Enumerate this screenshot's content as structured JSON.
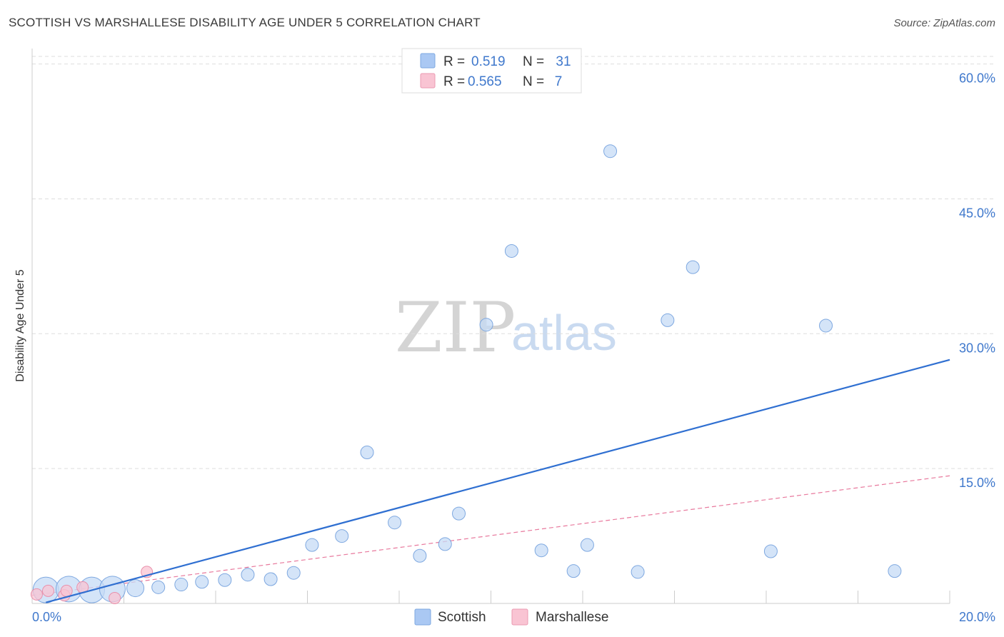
{
  "title": "SCOTTISH VS MARSHALLESE DISABILITY AGE UNDER 5 CORRELATION CHART",
  "source": "Source: ZipAtlas.com",
  "watermark": {
    "zip": "ZIP",
    "atlas": "atlas"
  },
  "legend": {
    "r_label": "R =",
    "n_label": "N =",
    "rows": [
      {
        "name": "Scottish",
        "r": "0.519",
        "n": "31",
        "color": "#aac8f3",
        "stroke": "#7ea8e0"
      },
      {
        "name": "Marshallese",
        "r": "0.565",
        "n": "7",
        "color": "#f9c4d3",
        "stroke": "#eb9ab2"
      }
    ]
  },
  "colors": {
    "scottish_fill": "#c5dbf6",
    "scottish_stroke": "#7ea8e0",
    "scottish_line": "#2f6fd1",
    "marshallese_fill": "#f9c4d3",
    "marshallese_stroke": "#e890ab",
    "marshallese_line": "#e8799d",
    "grid": "#dddddd",
    "axis_text": "#3f78cc"
  },
  "chart_data": {
    "type": "scatter",
    "title": "SCOTTISH VS MARSHALLESE DISABILITY AGE UNDER 5 CORRELATION CHART",
    "xlabel": "",
    "ylabel": "Disability Age Under 5",
    "xlim": [
      0,
      20
    ],
    "ylim": [
      0,
      61
    ],
    "x_tick_labels": [
      "0.0%",
      "20.0%"
    ],
    "y_ticks": [
      15,
      30,
      45,
      60
    ],
    "y_tick_labels": [
      "15.0%",
      "30.0%",
      "45.0%",
      "60.0%"
    ],
    "grid": true,
    "legend_position": "top-center",
    "series": [
      {
        "name": "Scottish",
        "points": [
          {
            "x": 0.3,
            "y": 1.5,
            "size": "large"
          },
          {
            "x": 0.8,
            "y": 1.6,
            "size": "large"
          },
          {
            "x": 1.3,
            "y": 1.5,
            "size": "large"
          },
          {
            "x": 1.75,
            "y": 1.6,
            "size": "large"
          },
          {
            "x": 2.25,
            "y": 1.7,
            "size": "medium"
          },
          {
            "x": 2.75,
            "y": 1.8,
            "size": "small"
          },
          {
            "x": 3.25,
            "y": 2.1,
            "size": "small"
          },
          {
            "x": 3.7,
            "y": 2.4,
            "size": "small"
          },
          {
            "x": 4.2,
            "y": 2.6,
            "size": "small"
          },
          {
            "x": 4.7,
            "y": 3.2,
            "size": "small"
          },
          {
            "x": 5.2,
            "y": 2.7,
            "size": "small"
          },
          {
            "x": 5.7,
            "y": 3.4,
            "size": "small"
          },
          {
            "x": 6.1,
            "y": 6.5,
            "size": "small"
          },
          {
            "x": 6.75,
            "y": 7.5,
            "size": "small"
          },
          {
            "x": 7.3,
            "y": 16.8,
            "size": "small"
          },
          {
            "x": 7.9,
            "y": 9.0,
            "size": "small"
          },
          {
            "x": 8.45,
            "y": 5.3,
            "size": "small"
          },
          {
            "x": 9.0,
            "y": 6.6,
            "size": "small"
          },
          {
            "x": 9.3,
            "y": 10.0,
            "size": "small"
          },
          {
            "x": 9.9,
            "y": 31.0,
            "size": "small"
          },
          {
            "x": 10.45,
            "y": 39.2,
            "size": "small"
          },
          {
            "x": 11.1,
            "y": 5.9,
            "size": "small"
          },
          {
            "x": 11.8,
            "y": 3.6,
            "size": "small"
          },
          {
            "x": 12.1,
            "y": 6.5,
            "size": "small"
          },
          {
            "x": 12.6,
            "y": 50.3,
            "size": "small"
          },
          {
            "x": 13.2,
            "y": 3.5,
            "size": "small"
          },
          {
            "x": 13.85,
            "y": 31.5,
            "size": "small"
          },
          {
            "x": 14.4,
            "y": 37.4,
            "size": "small"
          },
          {
            "x": 16.1,
            "y": 5.8,
            "size": "small"
          },
          {
            "x": 17.3,
            "y": 30.9,
            "size": "small"
          },
          {
            "x": 18.8,
            "y": 3.6,
            "size": "small"
          }
        ],
        "trend": {
          "x": [
            0.3,
            20
          ],
          "y": [
            0.1,
            27.1
          ]
        }
      },
      {
        "name": "Marshallese",
        "points": [
          {
            "x": 0.1,
            "y": 1.0,
            "size": "small"
          },
          {
            "x": 0.35,
            "y": 1.4,
            "size": "small"
          },
          {
            "x": 0.7,
            "y": 0.9,
            "size": "small"
          },
          {
            "x": 0.75,
            "y": 1.4,
            "size": "small"
          },
          {
            "x": 1.1,
            "y": 1.8,
            "size": "small"
          },
          {
            "x": 1.8,
            "y": 0.6,
            "size": "small"
          },
          {
            "x": 2.5,
            "y": 3.5,
            "size": "small"
          }
        ],
        "trend": {
          "x": [
            0,
            20
          ],
          "y": [
            0.9,
            14.2
          ]
        }
      }
    ]
  }
}
